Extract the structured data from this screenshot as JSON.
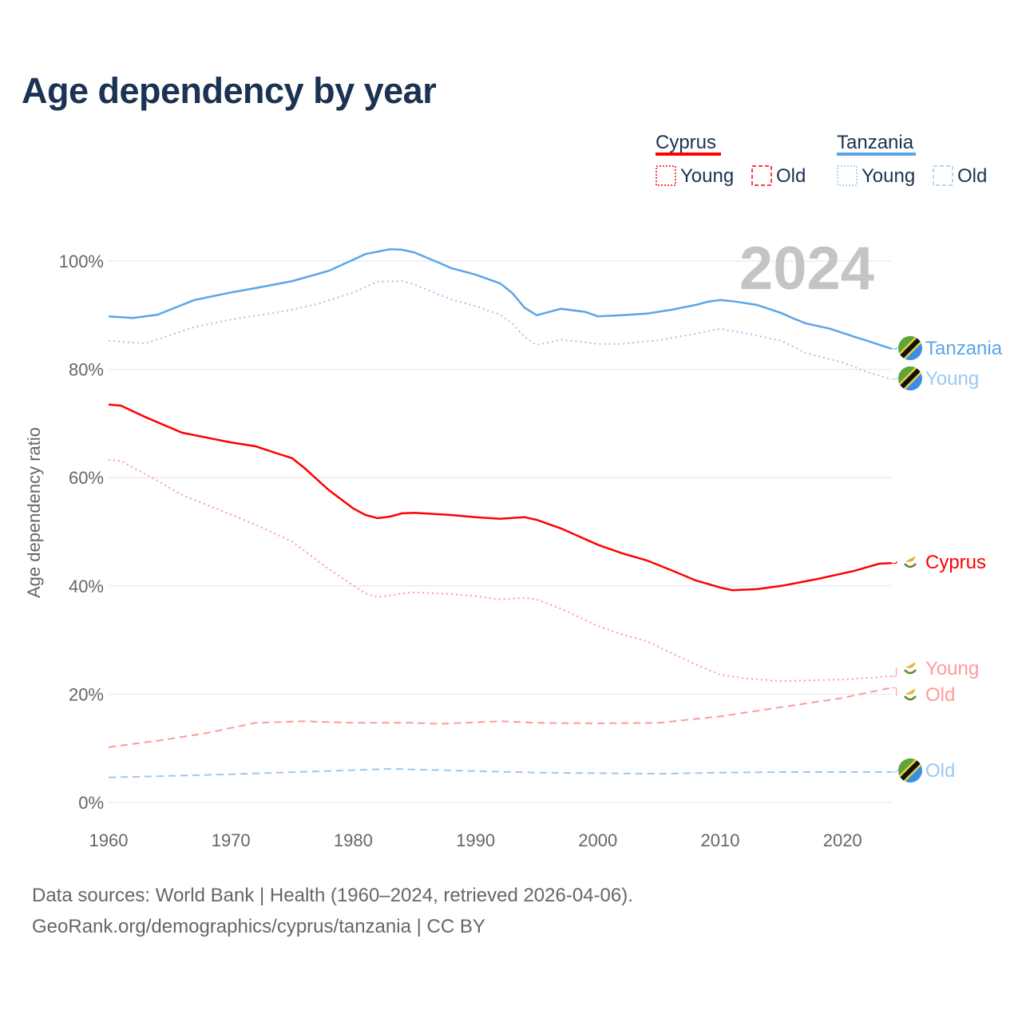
{
  "title": "Age dependency by year",
  "footer": {
    "line1": "Data sources: World Bank | Health (1960–2024, retrieved 2026-04-06).",
    "line2": "GeoRank.org/demographics/cyprus/tanzania | CC BY"
  },
  "legend": {
    "groups": [
      {
        "country": "Cyprus",
        "color": "#ff0000",
        "light": "#ff9a9a",
        "items": [
          "Young",
          "Old"
        ]
      },
      {
        "country": "Tanzania",
        "color": "#5aa5e8",
        "light": "#9cc8f0",
        "items": [
          "Young",
          "Old"
        ]
      }
    ]
  },
  "year_label": "2024",
  "chart_data": {
    "type": "line",
    "title": "Age dependency by year",
    "xlabel": "",
    "ylabel": "Age dependency ratio",
    "xlim": [
      1960,
      2024
    ],
    "ylim": [
      0,
      105
    ],
    "xticks": [
      "1960",
      "1970",
      "1980",
      "1990",
      "2000",
      "2010",
      "2020"
    ],
    "yticks": [
      "0%",
      "20%",
      "40%",
      "60%",
      "80%",
      "100%"
    ],
    "ytick_values": [
      0,
      20,
      40,
      60,
      80,
      100
    ],
    "xtick_values": [
      1960,
      1970,
      1980,
      1990,
      2000,
      2010,
      2020
    ],
    "grid": true,
    "series": [
      {
        "name": "Tanzania",
        "end_label": "Tanzania",
        "country": "Tanzania",
        "style": "solid",
        "color": "#5aa5e8",
        "x": [
          1960,
          1962,
          1964,
          1967,
          1970,
          1972,
          1975,
          1978,
          1981,
          1983,
          1984,
          1985,
          1987,
          1988,
          1990,
          1992,
          1993,
          1994,
          1995,
          1997,
          1999,
          2000,
          2002,
          2004,
          2006,
          2008,
          2009,
          2010,
          2011,
          2013,
          2015,
          2016,
          2017,
          2019,
          2021,
          2022,
          2024
        ],
        "values": [
          89.8,
          89.5,
          90.1,
          92.8,
          94.2,
          95.0,
          96.3,
          98.2,
          101.3,
          102.2,
          102.1,
          101.6,
          99.7,
          98.7,
          97.5,
          95.9,
          94.1,
          91.4,
          90.0,
          91.2,
          90.6,
          89.8,
          90.0,
          90.3,
          91.0,
          91.9,
          92.5,
          92.8,
          92.6,
          91.9,
          90.4,
          89.4,
          88.5,
          87.5,
          86.0,
          85.3,
          83.8
        ]
      },
      {
        "name": "Tanzania Young",
        "end_label": "Young",
        "country": "Tanzania",
        "style": "dotted",
        "color": "#9cc8f0",
        "x": [
          1960,
          1963,
          1967,
          1970,
          1974,
          1977,
          1980,
          1982,
          1984,
          1985,
          1988,
          1990,
          1992,
          1993,
          1994,
          1995,
          1997,
          2000,
          2002,
          2005,
          2008,
          2010,
          2012,
          2015,
          2017,
          2020,
          2022,
          2024
        ],
        "values": [
          85.3,
          84.8,
          87.8,
          89.2,
          90.6,
          92.0,
          94.2,
          96.2,
          96.3,
          95.7,
          92.9,
          91.7,
          90.1,
          88.5,
          86.0,
          84.5,
          85.5,
          84.7,
          84.7,
          85.4,
          86.6,
          87.5,
          86.7,
          85.3,
          83.0,
          81.3,
          79.5,
          78.2
        ]
      },
      {
        "name": "Cyprus",
        "end_label": "Cyprus",
        "country": "Cyprus",
        "style": "solid",
        "color": "#ff0000",
        "x": [
          1960,
          1961,
          1963,
          1966,
          1970,
          1972,
          1974,
          1975,
          1976,
          1978,
          1980,
          1981,
          1982,
          1983,
          1984,
          1985,
          1988,
          1990,
          1992,
          1994,
          1995,
          1997,
          2000,
          2002,
          2004,
          2006,
          2008,
          2010,
          2011,
          2013,
          2015,
          2018,
          2021,
          2023,
          2024
        ],
        "values": [
          73.5,
          73.3,
          71.2,
          68.3,
          66.5,
          65.8,
          64.3,
          63.6,
          61.8,
          57.7,
          54.3,
          53.1,
          52.5,
          52.8,
          53.4,
          53.5,
          53.1,
          52.7,
          52.4,
          52.7,
          52.2,
          50.6,
          47.6,
          46.0,
          44.7,
          42.9,
          41.0,
          39.7,
          39.2,
          39.4,
          40.0,
          41.3,
          42.8,
          44.1,
          44.2
        ]
      },
      {
        "name": "Cyprus Young",
        "end_label": "Young",
        "country": "Cyprus",
        "style": "dotted",
        "color": "#ff9a9a",
        "x": [
          1960,
          1961,
          1964,
          1966,
          1970,
          1972,
          1975,
          1976,
          1978,
          1980,
          1981,
          1982,
          1984,
          1985,
          1988,
          1990,
          1992,
          1994,
          1995,
          1997,
          2000,
          2002,
          2004,
          2006,
          2008,
          2010,
          2012,
          2015,
          2018,
          2020,
          2024
        ],
        "values": [
          63.3,
          63.1,
          59.4,
          56.8,
          53.2,
          51.3,
          48.2,
          46.5,
          43.1,
          40.1,
          38.6,
          37.9,
          38.6,
          38.8,
          38.5,
          38.1,
          37.5,
          37.8,
          37.5,
          35.8,
          32.6,
          31.0,
          29.8,
          27.6,
          25.5,
          23.6,
          22.9,
          22.4,
          22.6,
          22.7,
          23.3
        ]
      },
      {
        "name": "Cyprus Old",
        "end_label": "Old",
        "country": "Cyprus",
        "style": "dashed",
        "color": "#ff9a9a",
        "x": [
          1960,
          1964,
          1968,
          1972,
          1976,
          1980,
          1985,
          1987,
          1992,
          1995,
          2000,
          2005,
          2010,
          2015,
          2020,
          2024
        ],
        "values": [
          10.2,
          11.4,
          12.8,
          14.7,
          15.0,
          14.7,
          14.7,
          14.5,
          15.0,
          14.7,
          14.6,
          14.7,
          15.9,
          17.6,
          19.3,
          21.2
        ]
      },
      {
        "name": "Tanzania Old",
        "end_label": "Old",
        "country": "Tanzania",
        "style": "dashed",
        "color": "#9cc8f0",
        "x": [
          1960,
          1970,
          1983,
          1990,
          1995,
          2005,
          2010,
          2015,
          2024
        ],
        "values": [
          4.6,
          5.2,
          6.2,
          5.8,
          5.5,
          5.3,
          5.5,
          5.6,
          5.6
        ]
      }
    ]
  }
}
